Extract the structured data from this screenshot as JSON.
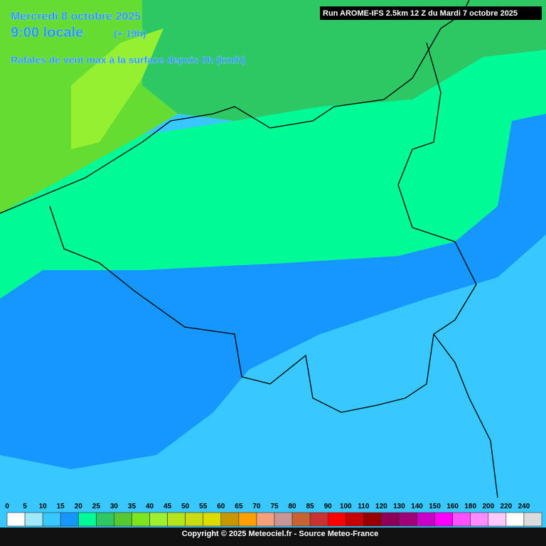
{
  "header": {
    "date": "Mercredi 8 octobre 2025",
    "time": "9:00 locale",
    "lead": "(+ 19h)",
    "parameter": "Rafales de vent max à la surface depuis 0h (km/h)",
    "run": "Run AROME-IFS 2.5km 12 Z du Mardi 7 octobre 2025"
  },
  "legend": {
    "entries": [
      {
        "label": "0",
        "color": "#ffffff"
      },
      {
        "label": "5",
        "color": "#a0e8fb"
      },
      {
        "label": "10",
        "color": "#38c8ff"
      },
      {
        "label": "15",
        "color": "#1696ff"
      },
      {
        "label": "20",
        "color": "#00fa96"
      },
      {
        "label": "25",
        "color": "#2dc864"
      },
      {
        "label": "30",
        "color": "#55c832"
      },
      {
        "label": "35",
        "color": "#7ce61e"
      },
      {
        "label": "40",
        "color": "#a0f032"
      },
      {
        "label": "45",
        "color": "#b4e61e"
      },
      {
        "label": "50",
        "color": "#c8dc14"
      },
      {
        "label": "55",
        "color": "#dcdc00"
      },
      {
        "label": "60",
        "color": "#c89600"
      },
      {
        "label": "65",
        "color": "#ffa000"
      },
      {
        "label": "70",
        "color": "#f4a07a"
      },
      {
        "label": "75",
        "color": "#c89696"
      },
      {
        "label": "80",
        "color": "#c86432"
      },
      {
        "label": "85",
        "color": "#c83232"
      },
      {
        "label": "90",
        "color": "#ff0000"
      },
      {
        "label": "100",
        "color": "#c80000"
      },
      {
        "label": "110",
        "color": "#960000"
      },
      {
        "label": "120",
        "color": "#8c005a"
      },
      {
        "label": "130",
        "color": "#a00078"
      },
      {
        "label": "140",
        "color": "#c800c8"
      },
      {
        "label": "150",
        "color": "#ff00ff"
      },
      {
        "label": "160",
        "color": "#ff50ff"
      },
      {
        "label": "180",
        "color": "#ff8cff"
      },
      {
        "label": "200",
        "color": "#ffc8ff"
      },
      {
        "label": "220",
        "color": "#ffffff"
      },
      {
        "label": "240",
        "color": "#dcdcdc"
      }
    ]
  },
  "footer": {
    "copyright": "Copyright © 2025 Meteociel.fr - Source Meteo-France"
  }
}
